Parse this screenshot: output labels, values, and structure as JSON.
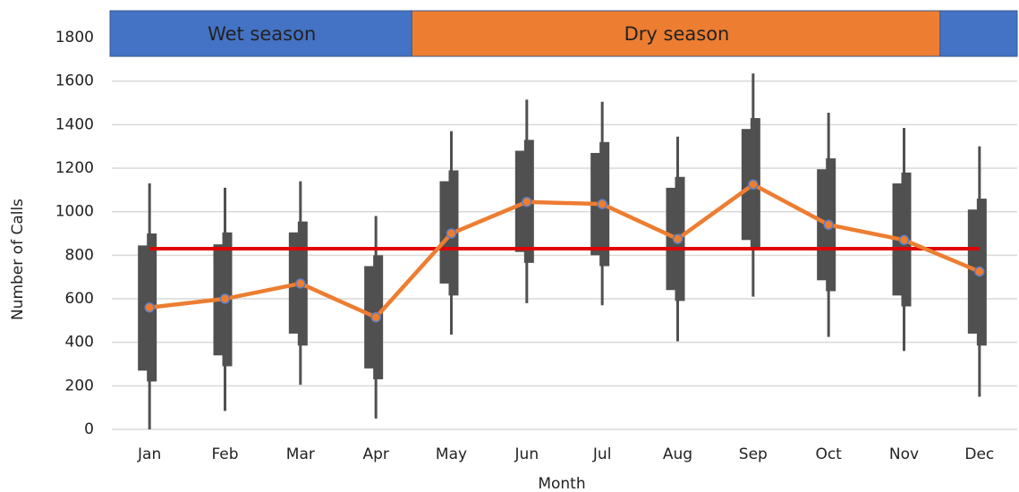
{
  "chart_data": {
    "type": "box",
    "categories": [
      "Jan",
      "Feb",
      "Mar",
      "Apr",
      "May",
      "Jun",
      "Jul",
      "Aug",
      "Sep",
      "Oct",
      "Nov",
      "Dec"
    ],
    "x_label": "Month",
    "y_label": "Number of Calls",
    "ylim": [
      0,
      1800
    ],
    "yticks": [
      0,
      200,
      400,
      600,
      800,
      1000,
      1200,
      1400,
      1600,
      1800
    ],
    "grid": true,
    "box_color": "#505050",
    "whisker_low": [
      0,
      85,
      205,
      50,
      435,
      580,
      570,
      405,
      610,
      425,
      360,
      150
    ],
    "whisker_high": [
      1130,
      1110,
      1140,
      980,
      1370,
      1515,
      1505,
      1345,
      1635,
      1455,
      1385,
      1300
    ],
    "box_a_low": [
      270,
      340,
      440,
      280,
      670,
      815,
      800,
      640,
      870,
      685,
      615,
      440
    ],
    "box_a_high": [
      845,
      850,
      905,
      750,
      1140,
      1280,
      1270,
      1110,
      1380,
      1195,
      1130,
      1010
    ],
    "box_b_low": [
      220,
      290,
      385,
      230,
      615,
      765,
      750,
      590,
      825,
      635,
      565,
      385
    ],
    "box_b_high": [
      900,
      905,
      955,
      800,
      1190,
      1330,
      1320,
      1160,
      1430,
      1245,
      1180,
      1060
    ],
    "series": [
      {
        "color": "#ed7d31",
        "marker_edge": "#5b7fc7",
        "values": [
          560,
          600,
          670,
          515,
          900,
          1045,
          1035,
          875,
          1125,
          940,
          870,
          725
        ]
      }
    ],
    "reference_line": {
      "value": 830,
      "color": "#e00000"
    },
    "seasons": [
      {
        "label": "Wet season",
        "start": 0,
        "end": 3,
        "color": "#4472c4"
      },
      {
        "label": "Dry season",
        "start": 4,
        "end": 10,
        "color": "#ed7d31"
      },
      {
        "start": 11,
        "end": 11,
        "color": "#4472c4"
      }
    ]
  }
}
